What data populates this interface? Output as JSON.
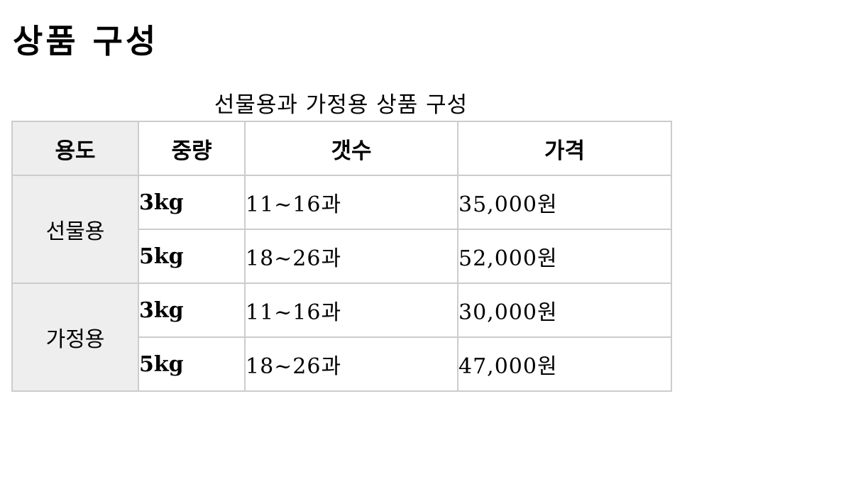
{
  "page_title": "상품 구성",
  "table_caption": "선물용과 가정용 상품 구성",
  "headers": {
    "usage": "용도",
    "weight": "중량",
    "count": "갯수",
    "price": "가격"
  },
  "groups": [
    {
      "usage": "선물용",
      "rows": [
        {
          "weight": "3kg",
          "count": "11~16과",
          "price": "35,000원"
        },
        {
          "weight": "5kg",
          "count": "18~26과",
          "price": "52,000원"
        }
      ]
    },
    {
      "usage": "가정용",
      "rows": [
        {
          "weight": "3kg",
          "count": "11~16과",
          "price": "30,000원"
        },
        {
          "weight": "5kg",
          "count": "18~26과",
          "price": "47,000원"
        }
      ]
    }
  ]
}
